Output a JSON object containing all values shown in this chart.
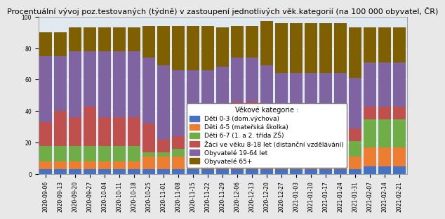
{
  "title": "Procentuální vývoj poz.testovaných (týdně) v zastoupení jednotlivých věk.kategorií (na 100 000 obyvatel, ČR)",
  "ylim": [
    0,
    100
  ],
  "yticks": [
    0,
    20,
    40,
    60,
    80,
    100
  ],
  "categories": [
    "2020-09-06",
    "2020-09-13",
    "2020-09-20",
    "2020-09-27",
    "2020-10-04",
    "2020-10-11",
    "2020-10-18",
    "2020-10-25",
    "2020-11-01",
    "2020-11-08",
    "2020-11-15",
    "2020-11-22",
    "2020-11-29",
    "2020-12-06",
    "2020-12-13",
    "2020-12-20",
    "2020-12-27",
    "2021-01-03",
    "2021-01-10",
    "2021-01-17",
    "2021-01-24",
    "2021-01-31",
    "2021-02-07",
    "2021-02-14",
    "2021-02-21"
  ],
  "series": {
    "Děti 0-3 (dom.výchova)": [
      3,
      3,
      3,
      3,
      3,
      3,
      3,
      3,
      3,
      3,
      3,
      3,
      3,
      3,
      3,
      3,
      3,
      3,
      3,
      3,
      3,
      3,
      5,
      5,
      5
    ],
    "Děti 4-5 (mateřská školka)": [
      5,
      5,
      5,
      5,
      5,
      5,
      5,
      8,
      8,
      8,
      8,
      8,
      13,
      13,
      13,
      13,
      8,
      8,
      8,
      8,
      8,
      8,
      12,
      12,
      12
    ],
    "Děti 6-7 (1. a 2. třída ZŠ)": [
      10,
      10,
      10,
      10,
      10,
      10,
      10,
      3,
      3,
      5,
      5,
      5,
      12,
      12,
      12,
      7,
      3,
      3,
      3,
      3,
      3,
      10,
      18,
      18,
      18
    ],
    "Žáci ve věku 8-18 let (distanční vzdělávání)": [
      15,
      22,
      18,
      25,
      18,
      18,
      18,
      18,
      8,
      8,
      8,
      8,
      8,
      18,
      18,
      18,
      8,
      8,
      8,
      8,
      8,
      8,
      8,
      8,
      8
    ],
    "Obyvatelé 19-64 let": [
      42,
      35,
      42,
      35,
      42,
      42,
      42,
      42,
      47,
      42,
      42,
      42,
      32,
      28,
      28,
      28,
      42,
      42,
      42,
      42,
      42,
      32,
      28,
      28,
      28
    ],
    "Obyvatelé 65+": [
      15,
      15,
      15,
      15,
      15,
      15,
      15,
      20,
      25,
      28,
      28,
      28,
      25,
      20,
      20,
      28,
      32,
      32,
      32,
      32,
      32,
      32,
      22,
      22,
      22
    ]
  },
  "colors": {
    "Děti 0-3 (dom.výchova)": "#4472C4",
    "Děti 4-5 (mateřská školka)": "#ED7D31",
    "Děti 6-7 (1. a 2. třída ZŠ)": "#70AD47",
    "Žáci ve věku 8-18 let (distanční vzdělávání)": "#C0504D",
    "Obyvatelé 19-64 let": "#8064A2",
    "Obyvatelé 65+": "#7F6000"
  },
  "legend_title": "Věkové kategorie :",
  "background_color": "#E8E8E8",
  "plot_bg_color": "#E0E8F0",
  "title_fontsize": 8,
  "tick_fontsize": 5.5,
  "legend_fontsize": 6.5
}
